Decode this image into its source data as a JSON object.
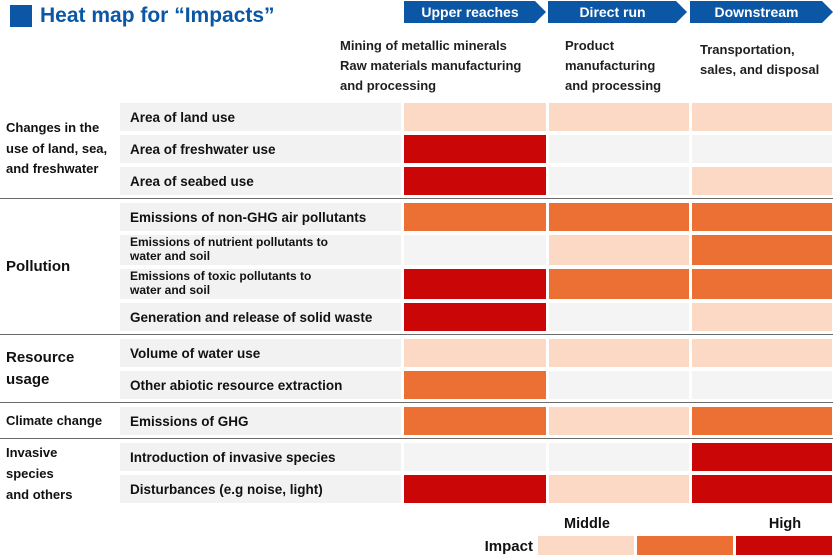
{
  "title": "Heat map for “Impacts”",
  "colors": {
    "brand_blue": "#0B57A5",
    "row_label_bg": "#F2F2F2",
    "level_0_blank": "#F4F4F4",
    "level_1_low": "#FCD9C5",
    "level_2_middle": "#EC7033",
    "level_3_high": "#CB0606",
    "separator": "#6B6B6B"
  },
  "stages": [
    {
      "label": "Upper reaches",
      "description_lines": [
        "Mining of metallic minerals",
        "Raw materials manufacturing",
        "and processing"
      ]
    },
    {
      "label": "Direct run",
      "description_lines": [
        "Product",
        "manufacturing",
        "and processing"
      ]
    },
    {
      "label": "Downstream",
      "description_lines": [
        "Transportation,",
        "sales, and disposal"
      ]
    }
  ],
  "groups": [
    {
      "label_lines": [
        "Changes in the",
        "use of land, sea,",
        "and freshwater"
      ],
      "rows": [
        {
          "label_lines": [
            "Area of land use"
          ],
          "levels": [
            1,
            1,
            1
          ]
        },
        {
          "label_lines": [
            "Area of freshwater use"
          ],
          "levels": [
            3,
            0,
            0
          ]
        },
        {
          "label_lines": [
            "Area of seabed use"
          ],
          "levels": [
            3,
            0,
            1
          ]
        }
      ]
    },
    {
      "label_lines": [
        "Pollution"
      ],
      "rows": [
        {
          "label_lines": [
            "Emissions of non-GHG air pollutants"
          ],
          "levels": [
            2,
            2,
            2
          ]
        },
        {
          "label_lines": [
            "Emissions of nutrient pollutants to",
            "water and soil"
          ],
          "levels": [
            0,
            1,
            2
          ]
        },
        {
          "label_lines": [
            "Emissions of toxic pollutants to",
            "water and soil"
          ],
          "levels": [
            3,
            2,
            2
          ]
        },
        {
          "label_lines": [
            "Generation and release of solid waste"
          ],
          "levels": [
            3,
            0,
            1
          ]
        }
      ]
    },
    {
      "label_lines": [
        "Resource",
        "usage"
      ],
      "rows": [
        {
          "label_lines": [
            "Volume of water use"
          ],
          "levels": [
            1,
            1,
            1
          ]
        },
        {
          "label_lines": [
            "Other abiotic resource extraction"
          ],
          "levels": [
            2,
            0,
            0
          ]
        }
      ]
    },
    {
      "label_lines": [
        "Climate change"
      ],
      "rows": [
        {
          "label_lines": [
            "Emissions of GHG"
          ],
          "levels": [
            2,
            1,
            2
          ]
        }
      ]
    },
    {
      "label_lines": [
        "Invasive",
        "species",
        "and others"
      ],
      "rows": [
        {
          "label_lines": [
            "Introduction of invasive species"
          ],
          "levels": [
            0,
            0,
            3
          ]
        },
        {
          "label_lines": [
            "Disturbances (e.g noise, light)"
          ],
          "levels": [
            3,
            1,
            3
          ]
        }
      ]
    }
  ],
  "legend": {
    "label": "Impact",
    "tick_middle": "Middle",
    "tick_high": "High",
    "swatch_names": [
      "low",
      "middle",
      "high"
    ]
  },
  "chart_data": {
    "type": "heatmap",
    "title": "Heat map for “Impacts”",
    "x_stages": [
      "Upper reaches",
      "Direct run",
      "Downstream"
    ],
    "x_descriptions": [
      "Mining of metallic minerals; Raw materials manufacturing and processing",
      "Product manufacturing and processing",
      "Transportation, sales, and disposal"
    ],
    "y_groups": [
      {
        "group": "Changes in the use of land, sea, and freshwater",
        "rows": [
          "Area of land use",
          "Area of freshwater use",
          "Area of seabed use"
        ]
      },
      {
        "group": "Pollution",
        "rows": [
          "Emissions of non-GHG air pollutants",
          "Emissions of nutrient pollutants to water and soil",
          "Emissions of toxic pollutants to water and soil",
          "Generation and release of solid waste"
        ]
      },
      {
        "group": "Resource usage",
        "rows": [
          "Volume of water use",
          "Other abiotic resource extraction"
        ]
      },
      {
        "group": "Climate change",
        "rows": [
          "Emissions of GHG"
        ]
      },
      {
        "group": "Invasive species and others",
        "rows": [
          "Introduction of invasive species",
          "Disturbances (e.g noise, light)"
        ]
      }
    ],
    "values": [
      [
        1,
        1,
        1
      ],
      [
        3,
        0,
        0
      ],
      [
        3,
        0,
        1
      ],
      [
        2,
        2,
        2
      ],
      [
        0,
        1,
        2
      ],
      [
        3,
        2,
        2
      ],
      [
        3,
        0,
        1
      ],
      [
        1,
        1,
        1
      ],
      [
        2,
        0,
        0
      ],
      [
        2,
        1,
        2
      ],
      [
        0,
        0,
        3
      ],
      [
        3,
        1,
        3
      ]
    ],
    "value_scale": {
      "0": "blank / not applicable",
      "1": "low (light peach)",
      "2": "middle (orange)",
      "3": "high (red)"
    },
    "legend": {
      "label": "Impact",
      "ticks": [
        "Middle",
        "High"
      ],
      "position": "bottom-right"
    },
    "grid": false
  }
}
